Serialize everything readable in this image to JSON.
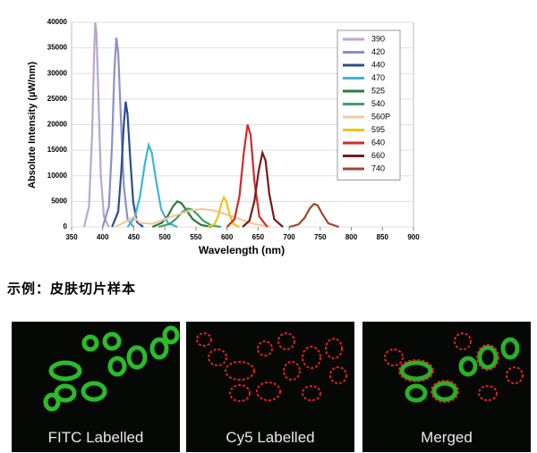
{
  "chart_data": {
    "type": "line",
    "y_label": "Absolute Intensity (µW/nm)",
    "x_label": "Wavelength (nm)",
    "xlim": [
      350,
      900
    ],
    "xticks": [
      350,
      400,
      450,
      500,
      550,
      600,
      650,
      700,
      750,
      800,
      850,
      900
    ],
    "ylim": [
      0,
      40000
    ],
    "yticks": [
      0,
      5000,
      10000,
      15000,
      20000,
      25000,
      30000,
      35000,
      40000
    ],
    "grid": true,
    "legend": "upper right",
    "series": [
      {
        "name": "390",
        "color": "#b9a7cf",
        "x": [
          370,
          378,
          383,
          386,
          388,
          390,
          393,
          397,
          402,
          410
        ],
        "values": [
          0,
          4000,
          18000,
          33000,
          40000,
          38000,
          26000,
          10000,
          2000,
          0
        ]
      },
      {
        "name": "420",
        "color": "#8d8fc9",
        "x": [
          400,
          410,
          415,
          419,
          422,
          425,
          429,
          434,
          440,
          450
        ],
        "values": [
          0,
          4000,
          16000,
          31000,
          37000,
          34000,
          22000,
          8000,
          1500,
          0
        ]
      },
      {
        "name": "440",
        "color": "#2c4e8e",
        "x": [
          415,
          425,
          430,
          434,
          437,
          440,
          444,
          449,
          455,
          465
        ],
        "values": [
          0,
          3000,
          11000,
          20000,
          24500,
          22000,
          14000,
          5000,
          1000,
          0
        ]
      },
      {
        "name": "470",
        "color": "#3db5d9",
        "x": [
          440,
          452,
          460,
          468,
          474,
          479,
          486,
          494,
          505,
          520
        ],
        "values": [
          0,
          2000,
          6000,
          12500,
          16000,
          14500,
          9000,
          3500,
          800,
          0
        ]
      },
      {
        "name": "525",
        "color": "#2d7a3a",
        "x": [
          480,
          495,
          505,
          513,
          520,
          527,
          535,
          545,
          558,
          575
        ],
        "values": [
          0,
          800,
          2200,
          4000,
          5000,
          4600,
          3200,
          1500,
          400,
          0
        ]
      },
      {
        "name": "540",
        "color": "#3aa06a",
        "x": [
          490,
          508,
          518,
          528,
          536,
          544,
          552,
          562,
          575,
          590
        ],
        "values": [
          0,
          600,
          1600,
          2900,
          3600,
          3400,
          2500,
          1200,
          300,
          0
        ]
      },
      {
        "name": "560P",
        "color": "#f3c89a",
        "x": [
          420,
          440,
          450,
          460,
          480,
          510,
          540,
          560,
          580,
          610,
          640,
          670
        ],
        "values": [
          0,
          1200,
          2000,
          800,
          600,
          2000,
          3200,
          3500,
          3200,
          2000,
          700,
          0
        ]
      },
      {
        "name": "595",
        "color": "#f0c419",
        "x": [
          570,
          580,
          586,
          591,
          595,
          599,
          604,
          610,
          620
        ],
        "values": [
          0,
          600,
          2200,
          4600,
          5800,
          5000,
          2500,
          600,
          0
        ]
      },
      {
        "name": "640",
        "color": "#d42a2a",
        "x": [
          600,
          612,
          620,
          627,
          633,
          638,
          644,
          652,
          665
        ],
        "values": [
          0,
          1500,
          6000,
          14500,
          20000,
          18000,
          9000,
          2000,
          0
        ]
      },
      {
        "name": "660",
        "color": "#7a1a1a",
        "x": [
          625,
          636,
          644,
          651,
          657,
          662,
          668,
          676,
          690
        ],
        "values": [
          0,
          1200,
          5000,
          11000,
          14500,
          13000,
          6500,
          1500,
          0
        ]
      },
      {
        "name": "740",
        "color": "#a0462e",
        "x": [
          700,
          715,
          725,
          733,
          740,
          746,
          753,
          763,
          780
        ],
        "values": [
          0,
          500,
          1800,
          3600,
          4500,
          4200,
          2600,
          700,
          0
        ]
      }
    ]
  },
  "caption": "示例：皮肤切片样本",
  "panels": [
    "FITC Labelled",
    "Cy5 Labelled",
    "Merged"
  ]
}
